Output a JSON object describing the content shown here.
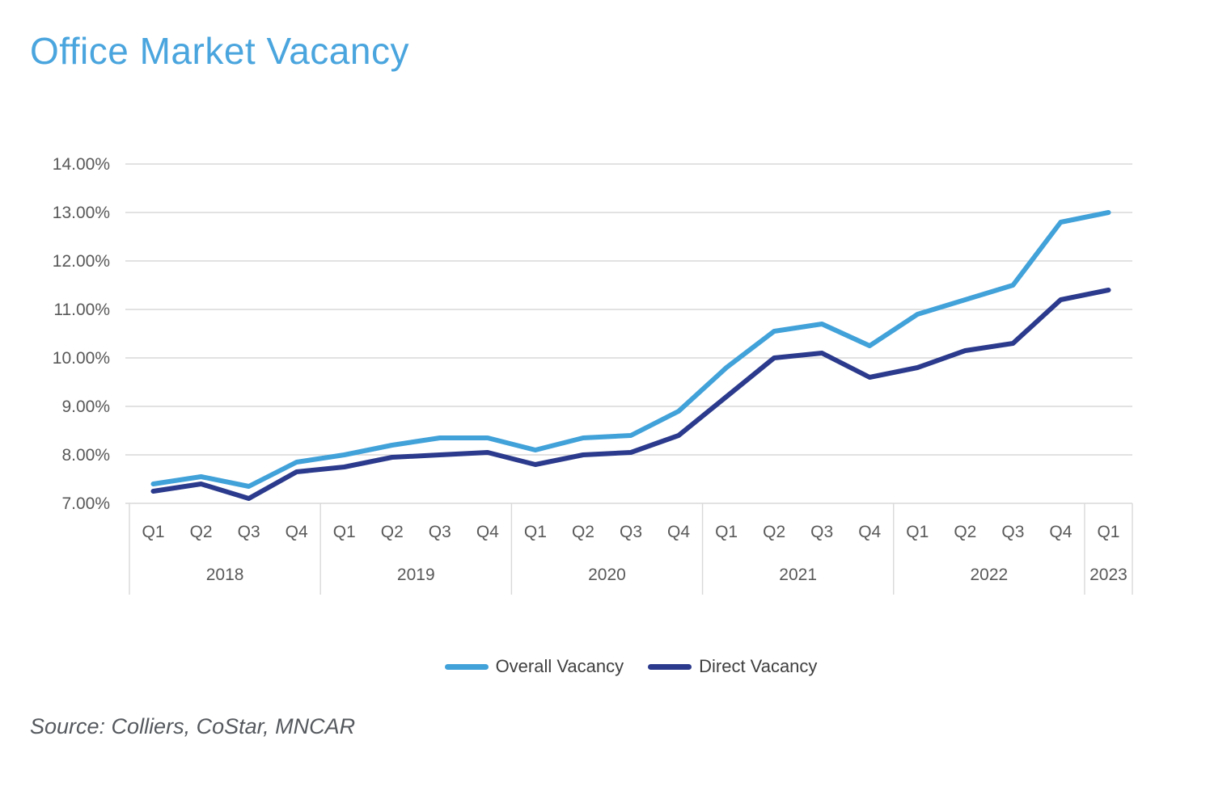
{
  "title": "Office Market Vacancy",
  "source": "Source: Colliers, CoStar, MNCAR",
  "colors": {
    "title_accent": "#4AA5DE",
    "grid": "#D9D9D9",
    "axis_text": "#595959",
    "legend_text": "#3F3F3F"
  },
  "chart_data": {
    "type": "line",
    "title": "Office Market Vacancy",
    "xlabel": "",
    "ylabel": "",
    "ylim": [
      7,
      14
    ],
    "grid": true,
    "legend_position": "bottom",
    "y_ticks": [
      {
        "value": 14,
        "label": "14.00%"
      },
      {
        "value": 13,
        "label": "13.00%"
      },
      {
        "value": 12,
        "label": "12.00%"
      },
      {
        "value": 11,
        "label": "11.00%"
      },
      {
        "value": 10,
        "label": "10.00%"
      },
      {
        "value": 9,
        "label": "9.00%"
      },
      {
        "value": 8,
        "label": "8.00%"
      },
      {
        "value": 7,
        "label": "7.00%"
      }
    ],
    "x_groups": [
      {
        "year": "2018",
        "quarters": [
          "Q1",
          "Q2",
          "Q3",
          "Q4"
        ]
      },
      {
        "year": "2019",
        "quarters": [
          "Q1",
          "Q2",
          "Q3",
          "Q4"
        ]
      },
      {
        "year": "2020",
        "quarters": [
          "Q1",
          "Q2",
          "Q3",
          "Q4"
        ]
      },
      {
        "year": "2021",
        "quarters": [
          "Q1",
          "Q2",
          "Q3",
          "Q4"
        ]
      },
      {
        "year": "2022",
        "quarters": [
          "Q1",
          "Q2",
          "Q3",
          "Q4"
        ]
      },
      {
        "year": "2023",
        "quarters": [
          "Q1"
        ]
      }
    ],
    "categories": [
      "2018 Q1",
      "2018 Q2",
      "2018 Q3",
      "2018 Q4",
      "2019 Q1",
      "2019 Q2",
      "2019 Q3",
      "2019 Q4",
      "2020 Q1",
      "2020 Q2",
      "2020 Q3",
      "2020 Q4",
      "2021 Q1",
      "2021 Q2",
      "2021 Q3",
      "2021 Q4",
      "2022 Q1",
      "2022 Q2",
      "2022 Q3",
      "2022 Q4",
      "2023 Q1"
    ],
    "series": [
      {
        "name": "Overall Vacancy",
        "color": "#41A1D9",
        "values": [
          7.4,
          7.55,
          7.35,
          7.85,
          8.0,
          8.2,
          8.35,
          8.35,
          8.1,
          8.35,
          8.4,
          8.9,
          9.8,
          10.55,
          10.7,
          10.25,
          10.9,
          11.2,
          11.5,
          12.8,
          13.0
        ]
      },
      {
        "name": "Direct Vacancy",
        "color": "#2B3A8C",
        "values": [
          7.25,
          7.4,
          7.1,
          7.65,
          7.75,
          7.95,
          8.0,
          8.05,
          7.8,
          8.0,
          8.05,
          8.4,
          9.2,
          10.0,
          10.1,
          9.6,
          9.8,
          10.15,
          10.3,
          11.2,
          11.4
        ]
      }
    ]
  }
}
